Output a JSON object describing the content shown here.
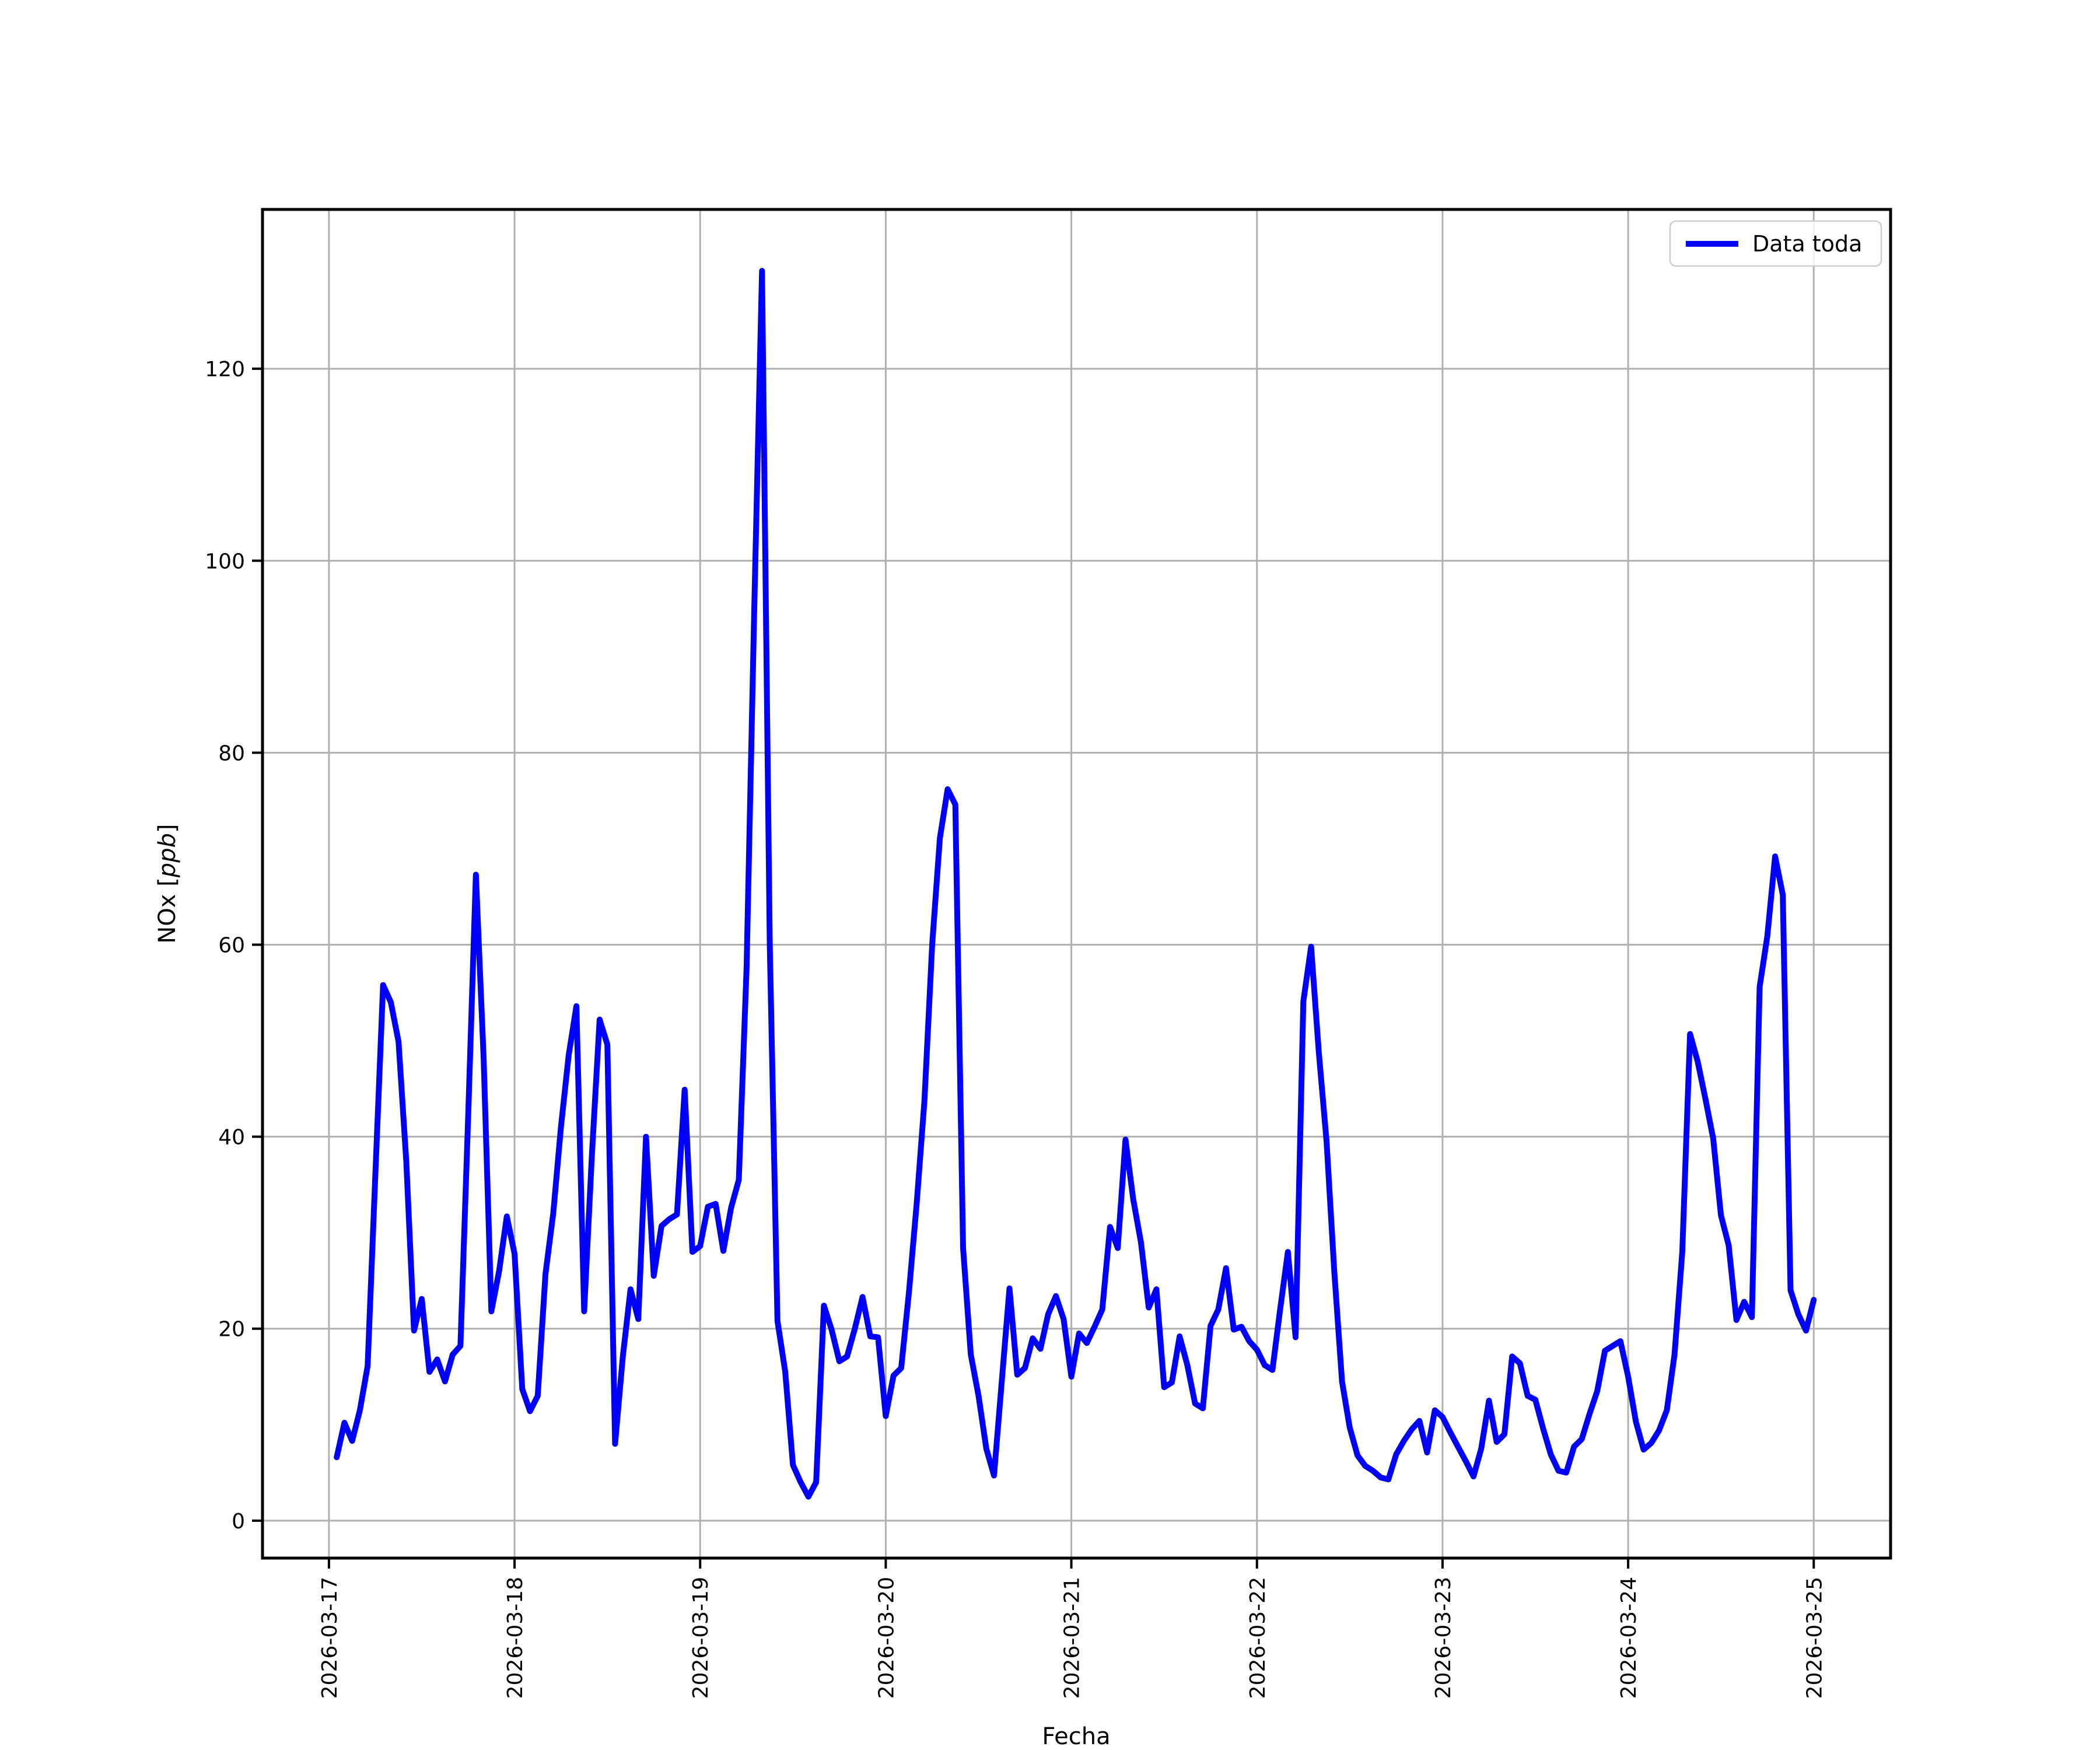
{
  "chart_data": {
    "type": "line",
    "title": "",
    "xlabel": "Fecha",
    "ylabel": "NOx [ppb]",
    "ylabel_parts": {
      "prefix": "NOx [",
      "italic": "ppb",
      "suffix": "]"
    },
    "legend": {
      "label": "Data toda",
      "position": "upper right"
    },
    "grid": true,
    "colors": {
      "line": "#0000ff",
      "grid": "#b0b0b0",
      "spine": "#000000",
      "legend_border": "#cccccc"
    },
    "x_tick_labels": [
      "2026-03-17",
      "2026-03-18",
      "2026-03-19",
      "2026-03-20",
      "2026-03-21",
      "2026-03-22",
      "2026-03-23",
      "2026-03-24",
      "2026-03-25"
    ],
    "y_ticks": [
      0,
      20,
      40,
      60,
      80,
      100,
      120
    ],
    "xlim_days": [
      -0.358,
      8.414
    ],
    "ylim": [
      -3.9,
      136.6
    ],
    "series": [
      {
        "name": "Data toda",
        "color": "#0000ff",
        "start": "2026-03-17 01:00",
        "interval_hours": 1,
        "values": [
          6.6,
          10.2,
          8.3,
          11.5,
          16.1,
          36.0,
          55.8,
          54.0,
          49.9,
          37.4,
          19.8,
          23.1,
          15.5,
          16.8,
          14.5,
          17.3,
          18.2,
          42.0,
          67.3,
          48.3,
          21.8,
          26.0,
          31.7,
          27.8,
          13.7,
          11.4,
          13.0,
          25.7,
          32.0,
          41.0,
          48.5,
          53.6,
          21.8,
          38.0,
          52.2,
          49.6,
          8.0,
          17.1,
          24.1,
          21.0,
          40.0,
          25.5,
          30.7,
          31.4,
          31.9,
          44.9,
          28.0,
          28.6,
          32.7,
          33.0,
          28.1,
          32.6,
          35.5,
          57.5,
          95.0,
          130.2,
          60.0,
          20.8,
          15.5,
          5.8,
          4.0,
          2.5,
          4.0,
          22.4,
          19.9,
          16.6,
          17.1,
          20.0,
          23.3,
          19.2,
          19.1,
          10.9,
          15.1,
          15.9,
          23.8,
          33.0,
          43.7,
          60.0,
          71.1,
          76.2,
          74.6,
          28.4,
          17.3,
          13.0,
          7.5,
          4.7,
          14.5,
          24.2,
          15.2,
          15.9,
          19.0,
          17.9,
          21.5,
          23.4,
          21.0,
          15.0,
          19.5,
          18.5,
          20.2,
          22.0,
          30.6,
          28.4,
          39.7,
          33.5,
          29.0,
          22.2,
          24.1,
          13.9,
          14.4,
          19.2,
          16.2,
          12.2,
          11.7,
          20.3,
          22.0,
          26.3,
          19.9,
          20.2,
          18.7,
          17.8,
          16.2,
          15.7,
          22.0,
          28.0,
          19.1,
          54.1,
          59.8,
          48.8,
          39.5,
          26.0,
          14.5,
          9.7,
          6.8,
          5.7,
          5.2,
          4.5,
          4.3,
          6.9,
          8.3,
          9.5,
          10.4,
          7.1,
          11.5,
          10.8,
          9.2,
          7.7,
          6.2,
          4.6,
          7.5,
          12.5,
          8.2,
          9.0,
          17.1,
          16.4,
          13.0,
          12.6,
          9.6,
          6.9,
          5.2,
          5.0,
          7.7,
          8.5,
          11.1,
          13.5,
          17.7,
          18.2,
          18.7,
          15.0,
          10.3,
          7.4,
          8.1,
          9.4,
          11.5,
          17.3,
          28.0,
          50.7,
          47.8,
          43.9,
          39.8,
          31.8,
          28.7,
          20.9,
          22.8,
          21.2,
          55.6,
          60.9,
          69.2,
          65.2,
          24.0,
          21.5,
          19.8,
          23.0
        ]
      }
    ]
  }
}
